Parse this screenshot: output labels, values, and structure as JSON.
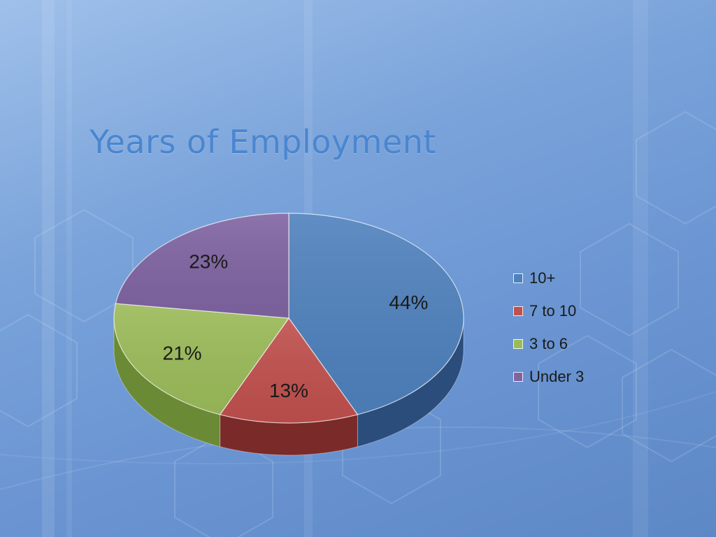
{
  "slide": {
    "title": "Years of Employment"
  },
  "chart_data": {
    "type": "pie",
    "title": "Years of Employment",
    "categories": [
      "10+",
      "7 to 10",
      "3 to 6",
      "Under 3"
    ],
    "values": [
      44,
      13,
      21,
      23
    ],
    "data_labels": [
      "44%",
      "13%",
      "21%",
      "23%"
    ],
    "colors": [
      "#4f81bd",
      "#c0504d",
      "#9bbb59",
      "#8064a2"
    ],
    "side_colors": [
      "#2a4d7c",
      "#7a2a28",
      "#6b8a35",
      "#553f70"
    ],
    "legend": "right",
    "style": "3d"
  }
}
